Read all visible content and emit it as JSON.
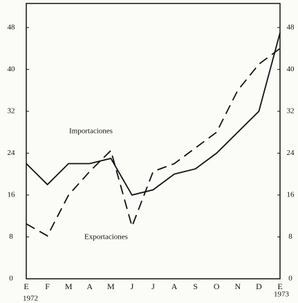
{
  "chart_data": {
    "type": "line",
    "categories": [
      "E",
      "F",
      "M",
      "A",
      "M",
      "J",
      "J",
      "A",
      "S",
      "O",
      "N",
      "D",
      "E"
    ],
    "year_labels": [
      "1972",
      "1973"
    ],
    "series": [
      {
        "name": "Importaciones",
        "color": "#111111",
        "dash": "solid",
        "values": [
          22,
          18,
          22,
          22,
          23,
          16,
          17,
          20,
          21,
          24,
          28,
          32,
          47
        ]
      },
      {
        "name": "Exportaciones",
        "color": "#111111",
        "dash": "dashed",
        "values": [
          10.5,
          8.2,
          16,
          20.5,
          24.5,
          10,
          20.5,
          22,
          25,
          28,
          36,
          41,
          44
        ]
      }
    ],
    "ylim": [
      0,
      52.6
    ],
    "yticks": [
      0,
      8,
      16,
      24,
      32,
      40,
      48
    ],
    "y2lim": [
      0,
      52.6
    ],
    "y2ticks": [
      0,
      8,
      16,
      24,
      32,
      40,
      48
    ],
    "grid": false
  }
}
